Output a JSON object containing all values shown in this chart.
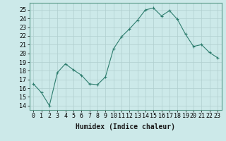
{
  "x": [
    0,
    1,
    2,
    3,
    4,
    5,
    6,
    7,
    8,
    9,
    10,
    11,
    12,
    13,
    14,
    15,
    16,
    17,
    18,
    19,
    20,
    21,
    22,
    23
  ],
  "y": [
    16.5,
    15.5,
    14.0,
    17.8,
    18.8,
    18.1,
    17.5,
    16.5,
    16.4,
    17.3,
    20.5,
    21.9,
    22.8,
    23.8,
    25.0,
    25.2,
    24.3,
    24.9,
    23.9,
    22.2,
    20.8,
    21.0,
    20.1,
    19.5
  ],
  "line_color": "#2e7d6e",
  "marker": "+",
  "marker_size": 3,
  "bg_color": "#cce9e9",
  "grid_color": "#b0cfcf",
  "xlabel": "Humidex (Indice chaleur)",
  "ylim": [
    13.5,
    25.8
  ],
  "xlim": [
    -0.5,
    23.5
  ],
  "yticks": [
    14,
    15,
    16,
    17,
    18,
    19,
    20,
    21,
    22,
    23,
    24,
    25
  ],
  "xticks": [
    0,
    1,
    2,
    3,
    4,
    5,
    6,
    7,
    8,
    9,
    10,
    11,
    12,
    13,
    14,
    15,
    16,
    17,
    18,
    19,
    20,
    21,
    22,
    23
  ],
  "xlabel_fontsize": 7,
  "tick_fontsize": 6,
  "linewidth": 0.8,
  "markeredgewidth": 0.8
}
